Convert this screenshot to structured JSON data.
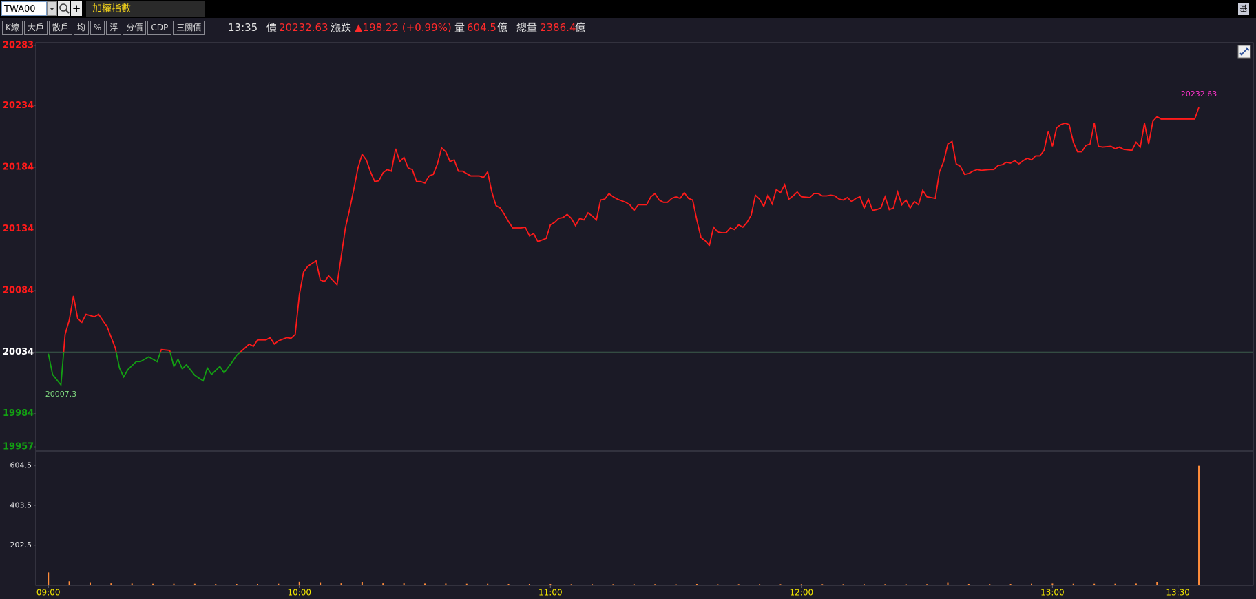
{
  "toolbar": {
    "symbol": "TWA00",
    "name": "加權指數",
    "right_buttons": [
      "基"
    ],
    "buttons": [
      "K線",
      "大戶",
      "散戶",
      "均",
      "%",
      "浮",
      "分價",
      "CDP",
      "三關價"
    ]
  },
  "quote": {
    "time": "13:35",
    "price_label": "價",
    "price": "20232.63",
    "change_label": "漲跌",
    "change": "▲198.22 (+0.99%)",
    "volume_label": "量",
    "volume": "604.5",
    "volume_unit": "億",
    "total_label": "總量",
    "total": "2386.4",
    "total_unit": "億"
  },
  "chart_data": [
    {
      "type": "line",
      "reference": 20034,
      "up_color": "#ff1a1a",
      "down_color": "#13a013",
      "ref_line_color": "#3d5c4c",
      "xlim": [
        "08:57",
        "13:48"
      ],
      "ylim": [
        19957,
        20283
      ],
      "yticks": [
        19957,
        19984,
        20034,
        20084,
        20134,
        20184,
        20234,
        20283
      ],
      "annotations": {
        "low": "20007.3",
        "last": "20232.63"
      },
      "low_color": "#7fd87f",
      "last_color": "#ff33cc",
      "x": [
        "09:00",
        "09:01",
        "09:03",
        "09:04",
        "09:05",
        "09:06",
        "09:07",
        "09:08",
        "09:09",
        "09:11",
        "09:12",
        "09:14",
        "09:16",
        "09:17",
        "09:18",
        "09:19",
        "09:21",
        "09:22",
        "09:24",
        "09:26",
        "09:27",
        "09:29",
        "09:30",
        "09:31",
        "09:32",
        "09:33",
        "09:35",
        "09:37",
        "09:38",
        "09:39",
        "09:41",
        "09:42",
        "09:44",
        "09:45",
        "09:47",
        "09:48",
        "09:49",
        "09:50",
        "09:52",
        "09:53",
        "09:54",
        "09:55",
        "09:57",
        "09:58",
        "09:59",
        "10:00",
        "10:01",
        "10:02",
        "10:04",
        "10:05",
        "10:06",
        "10:07",
        "10:09",
        "10:11",
        "10:12",
        "10:13",
        "10:14",
        "10:15",
        "10:16",
        "10:17",
        "10:18",
        "10:19",
        "10:20",
        "10:21",
        "10:22",
        "10:23",
        "10:24",
        "10:25",
        "10:26",
        "10:27",
        "10:28",
        "10:29",
        "10:30",
        "10:31",
        "10:32",
        "10:33",
        "10:34",
        "10:35",
        "10:36",
        "10:37",
        "10:38",
        "10:39",
        "10:40",
        "10:41",
        "10:43",
        "10:44",
        "10:45",
        "10:46",
        "10:47",
        "10:48",
        "10:49",
        "10:50",
        "10:51",
        "10:53",
        "10:54",
        "10:55",
        "10:56",
        "10:57",
        "10:59",
        "11:00",
        "11:01",
        "11:02",
        "11:03",
        "11:04",
        "11:05",
        "11:06",
        "11:07",
        "11:08",
        "11:09",
        "11:10",
        "11:11",
        "11:12",
        "11:13",
        "11:14",
        "11:15",
        "11:16",
        "11:18",
        "11:19",
        "11:20",
        "11:21",
        "11:23",
        "11:24",
        "11:25",
        "11:26",
        "11:27",
        "11:28",
        "11:29",
        "11:30",
        "11:31",
        "11:32",
        "11:33",
        "11:34",
        "11:35",
        "11:36",
        "11:37",
        "11:38",
        "11:39",
        "11:40",
        "11:41",
        "11:42",
        "11:43",
        "11:44",
        "11:45",
        "11:46",
        "11:47",
        "11:48",
        "11:49",
        "11:50",
        "11:51",
        "11:52",
        "11:53",
        "11:54",
        "11:55",
        "11:56",
        "11:57",
        "11:58",
        "11:59",
        "12:00",
        "12:02",
        "12:03",
        "12:04",
        "12:05",
        "12:06",
        "12:07",
        "12:08",
        "12:09",
        "12:10",
        "12:11",
        "12:12",
        "12:13",
        "12:14",
        "12:15",
        "12:16",
        "12:17",
        "12:18",
        "12:19",
        "12:20",
        "12:21",
        "12:22",
        "12:23",
        "12:24",
        "12:25",
        "12:26",
        "12:27",
        "12:28",
        "12:29",
        "12:30",
        "12:32",
        "12:33",
        "12:34",
        "12:35",
        "12:36",
        "12:37",
        "12:38",
        "12:39",
        "12:40",
        "12:41",
        "12:42",
        "12:43",
        "12:45",
        "12:46",
        "12:47",
        "12:48",
        "12:49",
        "12:50",
        "12:51",
        "12:52",
        "12:53",
        "12:54",
        "12:55",
        "12:56",
        "12:57",
        "12:58",
        "12:59",
        "13:00",
        "13:01",
        "13:02",
        "13:03",
        "13:04",
        "13:05",
        "13:06",
        "13:07",
        "13:08",
        "13:09",
        "13:10",
        "13:11",
        "13:12",
        "13:14",
        "13:15",
        "13:16",
        "13:17",
        "13:19",
        "13:20",
        "13:21",
        "13:22",
        "13:23",
        "13:24",
        "13:25",
        "13:26",
        "13:34",
        "13:35"
      ],
      "series": [
        {
          "values": [
            20032.7,
            20015.8,
            20007.3,
            20048.3,
            20060,
            20079.5,
            20061.3,
            20058.1,
            20064.6,
            20062.6,
            20064.6,
            20054.8,
            20037.3,
            20021,
            20013.8,
            20019.7,
            20026.2,
            20026.2,
            20030.1,
            20026.2,
            20036,
            20035.3,
            20022.3,
            20028.1,
            20020.3,
            20023.6,
            20015.1,
            20010.6,
            20021,
            20015.8,
            20022.3,
            20017.1,
            20026.2,
            20031.4,
            20037.3,
            20040.5,
            20038.6,
            20043.8,
            20043.8,
            20045.7,
            20040.5,
            20043.1,
            20045.7,
            20045.1,
            20048.3,
            20080.8,
            20099,
            20103.6,
            20108.1,
            20092.5,
            20091.2,
            20095.8,
            20088.6,
            20134.8,
            20149.7,
            20166,
            20183.5,
            20194.6,
            20190,
            20180.3,
            20172.5,
            20173.1,
            20179.6,
            20182.2,
            20180.9,
            20199.1,
            20188.7,
            20192,
            20183.5,
            20182.2,
            20172.5,
            20172.5,
            20171.2,
            20177,
            20178.3,
            20186.8,
            20199.8,
            20196.6,
            20188.7,
            20190,
            20180.9,
            20180.9,
            20178.9,
            20177,
            20177,
            20175.7,
            20180.3,
            20164,
            20153,
            20151,
            20145.8,
            20139.9,
            20134.8,
            20134.8,
            20135.4,
            20128.3,
            20130.2,
            20123.7,
            20126.3,
            20137.4,
            20139.3,
            20142.6,
            20143.2,
            20145.8,
            20142.6,
            20136.7,
            20142.6,
            20141.3,
            20147.1,
            20144.5,
            20141.3,
            20157.5,
            20158.2,
            20162.7,
            20160.1,
            20158.2,
            20155.6,
            20153.6,
            20149.1,
            20153.6,
            20153.6,
            20160.1,
            20162.7,
            20157.5,
            20155.6,
            20155.6,
            20158.8,
            20160.1,
            20158.8,
            20163.4,
            20158.8,
            20157.5,
            20141.3,
            20127,
            20124.4,
            20120.5,
            20135.4,
            20131.5,
            20130.9,
            20130.9,
            20134.8,
            20133.5,
            20137.4,
            20135.4,
            20139.3,
            20145.2,
            20161.4,
            20158.2,
            20152.3,
            20161.4,
            20154.3,
            20166,
            20163.4,
            20169.9,
            20158.2,
            20160.8,
            20164,
            20160.1,
            20159.5,
            20162.7,
            20162.7,
            20160.8,
            20160.8,
            20161.4,
            20160.8,
            20158.2,
            20157.5,
            20159.5,
            20156.2,
            20158.8,
            20160.1,
            20151,
            20158.2,
            20149.1,
            20149.7,
            20151,
            20160.1,
            20149.7,
            20151,
            20164,
            20153.6,
            20157.5,
            20151,
            20156.2,
            20153.6,
            20165.3,
            20160.1,
            20158.8,
            20180.3,
            20188.7,
            20203,
            20205,
            20186.8,
            20184.8,
            20178.3,
            20179,
            20180.9,
            20182.2,
            20181.6,
            20182.2,
            20182.2,
            20185.5,
            20186.1,
            20188.1,
            20187.4,
            20189.4,
            20186.8,
            20189.4,
            20191.4,
            20190,
            20193.3,
            20193.3,
            20197.8,
            20213.5,
            20201.1,
            20216.1,
            20218.7,
            20219.9,
            20218.7,
            20204.4,
            20196.6,
            20196.6,
            20201.8,
            20203,
            20219.9,
            20201.1,
            20200.5,
            20201.1,
            20199.1,
            20200.5,
            20198.6,
            20197.8,
            20204.4,
            20200.5,
            20219.9,
            20203,
            20221.3,
            20225.2,
            20223.2,
            20223.2,
            20232.63
          ]
        }
      ]
    },
    {
      "type": "bar",
      "color": "#ff8c3a",
      "tick_label_color": "#f2e600",
      "xlim": [
        "08:57",
        "13:48"
      ],
      "ylim": [
        0,
        680
      ],
      "yticks": [
        202.5,
        403.5,
        604.5
      ],
      "xticks": [
        "09:00",
        "10:00",
        "11:00",
        "12:00",
        "13:00",
        "13:30"
      ],
      "x": [
        "09:00",
        "09:05",
        "09:10",
        "09:15",
        "09:20",
        "09:25",
        "09:30",
        "09:35",
        "09:40",
        "09:45",
        "09:50",
        "09:55",
        "10:00",
        "10:05",
        "10:10",
        "10:15",
        "10:20",
        "10:25",
        "10:30",
        "10:35",
        "10:40",
        "10:45",
        "10:50",
        "10:55",
        "11:00",
        "11:05",
        "11:10",
        "11:15",
        "11:20",
        "11:25",
        "11:30",
        "11:35",
        "11:40",
        "11:45",
        "11:50",
        "11:55",
        "12:00",
        "12:05",
        "12:10",
        "12:15",
        "12:20",
        "12:25",
        "12:30",
        "12:35",
        "12:40",
        "12:45",
        "12:50",
        "12:55",
        "13:00",
        "13:05",
        "13:10",
        "13:15",
        "13:20",
        "13:25",
        "13:35"
      ],
      "values": [
        65,
        20,
        12,
        10,
        9,
        8,
        8,
        8,
        7,
        7,
        7,
        8,
        18,
        12,
        10,
        16,
        10,
        10,
        9,
        9,
        8,
        8,
        7,
        7,
        7,
        6,
        6,
        6,
        6,
        6,
        6,
        7,
        6,
        6,
        6,
        6,
        6,
        6,
        6,
        6,
        6,
        6,
        6,
        12,
        7,
        7,
        7,
        8,
        9,
        8,
        8,
        8,
        9,
        16,
        604.5
      ]
    }
  ]
}
